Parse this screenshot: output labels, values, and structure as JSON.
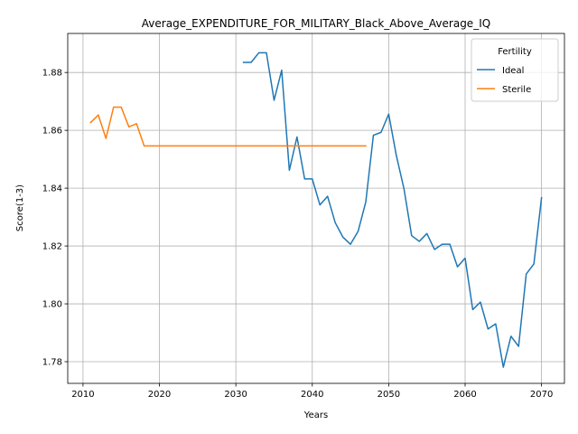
{
  "chart_data": {
    "type": "line",
    "title": "Average_EXPENDITURE_FOR_MILITARY_Black_Above_Average_IQ",
    "xlabel": "Years",
    "ylabel": "Score(1-3)",
    "xlim": [
      2008,
      2073
    ],
    "ylim": [
      1.7725,
      1.8935
    ],
    "xticks": [
      2010,
      2020,
      2030,
      2040,
      2050,
      2060,
      2070
    ],
    "yticks": [
      1.78,
      1.8,
      1.82,
      1.84,
      1.86,
      1.88
    ],
    "ytick_labels": [
      "1.78",
      "1.80",
      "1.82",
      "1.84",
      "1.86",
      "1.88"
    ],
    "grid": true,
    "legend": {
      "title": "Fertility",
      "placement": "upper right"
    },
    "series": [
      {
        "name": "Ideal",
        "color": "#1f77b4",
        "x": [
          2031,
          2032,
          2033,
          2034,
          2035,
          2036,
          2037,
          2038,
          2039,
          2040,
          2041,
          2042,
          2043,
          2044,
          2045,
          2046,
          2047,
          2048,
          2049,
          2050,
          2051,
          2052,
          2053,
          2054,
          2055,
          2056,
          2057,
          2058,
          2059,
          2060,
          2061,
          2062,
          2063,
          2064,
          2065,
          2066,
          2067,
          2068,
          2069,
          2070
        ],
        "y": [
          1.8835,
          1.8835,
          1.8868,
          1.8868,
          1.8704,
          1.8808,
          1.8462,
          1.8577,
          1.8432,
          1.8432,
          1.8342,
          1.8372,
          1.8281,
          1.8231,
          1.8206,
          1.8251,
          1.8352,
          1.8583,
          1.8593,
          1.8656,
          1.8513,
          1.8398,
          1.8236,
          1.8216,
          1.8243,
          1.8188,
          1.8206,
          1.8206,
          1.8128,
          1.8158,
          1.798,
          1.8006,
          1.7913,
          1.7931,
          1.7781,
          1.7888,
          1.7853,
          1.8103,
          1.8138,
          1.8367
        ]
      },
      {
        "name": "Sterile",
        "color": "#ff7f0e",
        "x": [
          2011,
          2012,
          2013,
          2014,
          2015,
          2016,
          2017,
          2018,
          2019,
          2020,
          2021,
          2022,
          2023,
          2024,
          2025,
          2026,
          2027,
          2028,
          2029,
          2030,
          2031,
          2032,
          2033,
          2034,
          2035,
          2036,
          2037,
          2038,
          2039,
          2040,
          2041,
          2042,
          2043,
          2044,
          2045,
          2046,
          2047
        ],
        "y": [
          1.8627,
          1.8653,
          1.8572,
          1.868,
          1.868,
          1.8612,
          1.8623,
          1.8546,
          1.8546,
          1.8546,
          1.8546,
          1.8546,
          1.8546,
          1.8546,
          1.8546,
          1.8546,
          1.8546,
          1.8546,
          1.8546,
          1.8546,
          1.8546,
          1.8546,
          1.8546,
          1.8546,
          1.8546,
          1.8546,
          1.8546,
          1.8546,
          1.8546,
          1.8546,
          1.8546,
          1.8546,
          1.8546,
          1.8546,
          1.8546,
          1.8546,
          1.8546
        ]
      }
    ]
  }
}
